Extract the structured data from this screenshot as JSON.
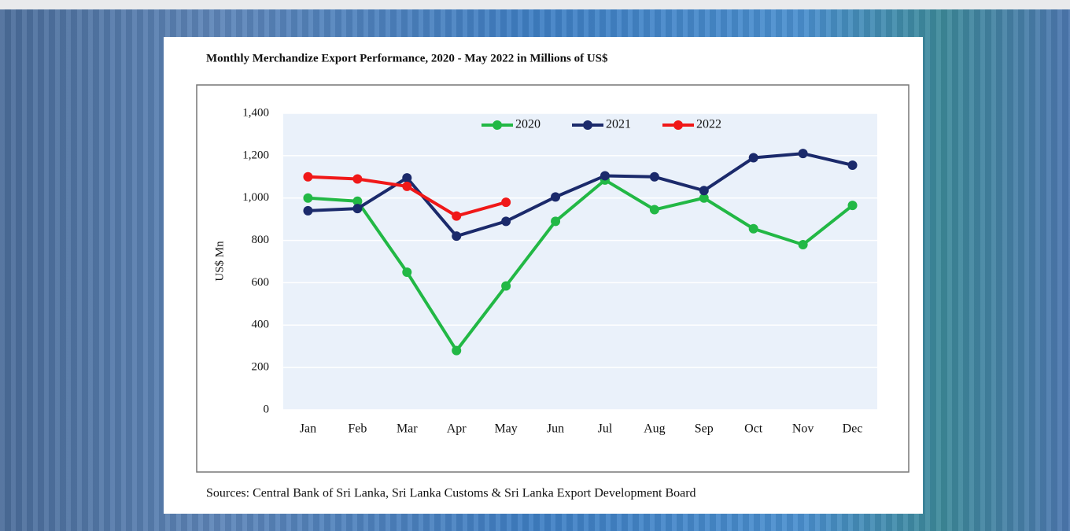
{
  "chart_data": {
    "type": "line",
    "title": "Monthly Merchandize Export Performance, 2020 - May 2022 in Millions of US$",
    "y_label": "US$ Mn",
    "source": "Sources: Central Bank of Sri Lanka, Sri Lanka Customs & Sri Lanka Export Development Board",
    "categories": [
      "Jan",
      "Feb",
      "Mar",
      "Apr",
      "May",
      "Jun",
      "Jul",
      "Aug",
      "Sep",
      "Oct",
      "Nov",
      "Dec"
    ],
    "series": [
      {
        "name": "2020",
        "color": "#22b845",
        "values": [
          1000,
          985,
          650,
          280,
          585,
          890,
          1085,
          945,
          1000,
          855,
          780,
          965
        ]
      },
      {
        "name": "2021",
        "color": "#1b2a6b",
        "values": [
          940,
          950,
          1095,
          820,
          890,
          1005,
          1105,
          1100,
          1035,
          1190,
          1210,
          1155
        ]
      },
      {
        "name": "2022",
        "color": "#f01818",
        "values": [
          1100,
          1090,
          1055,
          915,
          980,
          null,
          null,
          null,
          null,
          null,
          null,
          null
        ]
      }
    ],
    "ylim": [
      0,
      1400
    ],
    "yticks": [
      0,
      200,
      400,
      600,
      800,
      {
        "value": 1000,
        "label": "1,000"
      },
      {
        "value": 1200,
        "label": "1,200"
      },
      {
        "value": 1400,
        "label": "1,400"
      }
    ],
    "grid": true,
    "legend": "top"
  }
}
